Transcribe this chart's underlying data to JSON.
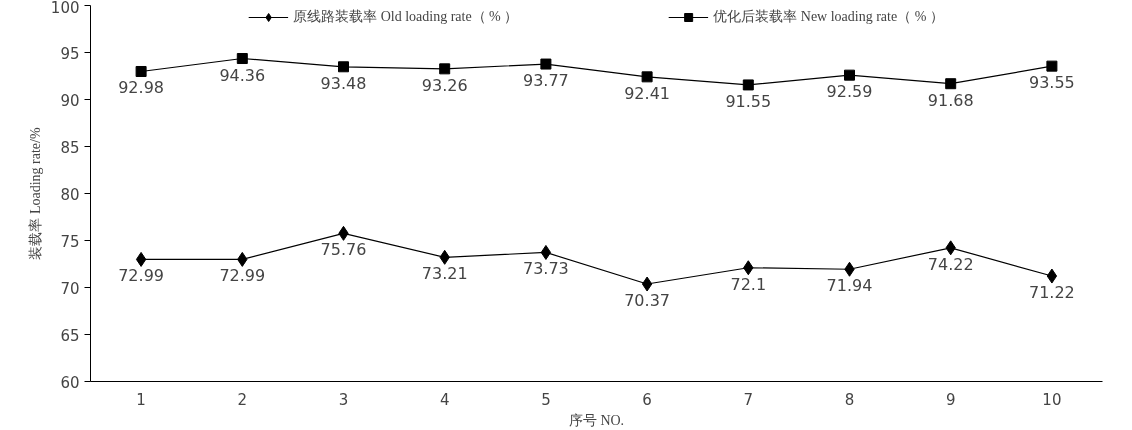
{
  "chart_data": {
    "type": "line",
    "xlabel": "序号 NO.",
    "ylabel": "装载率 Loading rate/%",
    "categories": [
      "1",
      "2",
      "3",
      "4",
      "5",
      "6",
      "7",
      "8",
      "9",
      "10"
    ],
    "series": [
      {
        "name": "原线路装载率 Old loading rate（ % ）",
        "color": "#000000",
        "marker": "diamond",
        "values": [
          72.99,
          72.99,
          75.76,
          73.21,
          73.73,
          70.37,
          72.1,
          71.94,
          74.22,
          71.22
        ]
      },
      {
        "name": "优化后装载率 New loading rate（ % ）",
        "color": "#000000",
        "marker": "square",
        "values": [
          92.98,
          94.36,
          93.48,
          93.26,
          93.77,
          92.41,
          91.55,
          92.59,
          91.68,
          93.55
        ]
      }
    ],
    "ylim": [
      60,
      100
    ],
    "yticks": [
      60,
      65,
      70,
      75,
      80,
      85,
      90,
      95,
      100
    ],
    "data_labels": true,
    "grid": false,
    "legend": "top",
    "line_style": "solid"
  }
}
